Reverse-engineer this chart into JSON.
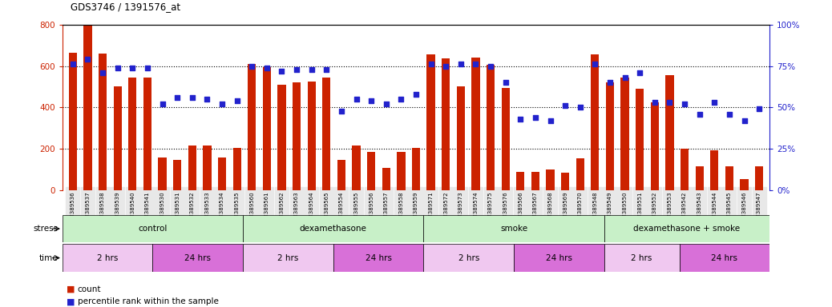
{
  "title": "GDS3746 / 1391576_at",
  "samples": [
    "GSM389536",
    "GSM389537",
    "GSM389538",
    "GSM389539",
    "GSM389540",
    "GSM389541",
    "GSM389530",
    "GSM389531",
    "GSM389532",
    "GSM389533",
    "GSM389534",
    "GSM389535",
    "GSM389560",
    "GSM389561",
    "GSM389562",
    "GSM389563",
    "GSM389564",
    "GSM389565",
    "GSM389554",
    "GSM389555",
    "GSM389556",
    "GSM389557",
    "GSM389558",
    "GSM389559",
    "GSM389571",
    "GSM389572",
    "GSM389573",
    "GSM389574",
    "GSM389575",
    "GSM389576",
    "GSM389566",
    "GSM389567",
    "GSM389568",
    "GSM389569",
    "GSM389570",
    "GSM389548",
    "GSM389549",
    "GSM389550",
    "GSM389551",
    "GSM389552",
    "GSM389553",
    "GSM389542",
    "GSM389543",
    "GSM389544",
    "GSM389545",
    "GSM389546",
    "GSM389547"
  ],
  "counts": [
    665,
    795,
    660,
    500,
    545,
    545,
    160,
    145,
    215,
    215,
    160,
    205,
    610,
    595,
    510,
    520,
    525,
    545,
    145,
    215,
    185,
    110,
    185,
    205,
    655,
    635,
    500,
    640,
    605,
    495,
    90,
    90,
    100,
    85,
    155,
    655,
    520,
    545,
    490,
    425,
    555,
    200,
    115,
    195,
    115,
    55,
    115
  ],
  "percentiles": [
    76,
    79,
    71,
    74,
    74,
    74,
    52,
    56,
    56,
    55,
    52,
    54,
    75,
    74,
    72,
    73,
    73,
    73,
    48,
    55,
    54,
    52,
    55,
    58,
    76,
    75,
    76,
    76,
    75,
    65,
    43,
    44,
    42,
    51,
    50,
    76,
    65,
    68,
    71,
    53,
    53,
    52,
    46,
    53,
    46,
    42,
    49
  ],
  "ylim_left": [
    0,
    800
  ],
  "ylim_right": [
    0,
    100
  ],
  "yticks_left": [
    0,
    200,
    400,
    600,
    800
  ],
  "yticks_right": [
    0,
    25,
    50,
    75,
    100
  ],
  "bar_color": "#cc2200",
  "dot_color": "#2222cc",
  "stress_groups": [
    {
      "label": "control",
      "start": 0,
      "end": 12,
      "color": "#c8f0c8"
    },
    {
      "label": "dexamethasone",
      "start": 12,
      "end": 24,
      "color": "#c8f0c8"
    },
    {
      "label": "smoke",
      "start": 24,
      "end": 36,
      "color": "#c8f0c8"
    },
    {
      "label": "dexamethasone + smoke",
      "start": 36,
      "end": 47,
      "color": "#c8f0c8"
    }
  ],
  "time_groups": [
    {
      "label": "2 hrs",
      "start": 0,
      "end": 6,
      "color": "#f0c8f0"
    },
    {
      "label": "24 hrs",
      "start": 6,
      "end": 12,
      "color": "#d870d8"
    },
    {
      "label": "2 hrs",
      "start": 12,
      "end": 18,
      "color": "#f0c8f0"
    },
    {
      "label": "24 hrs",
      "start": 18,
      "end": 24,
      "color": "#d870d8"
    },
    {
      "label": "2 hrs",
      "start": 24,
      "end": 30,
      "color": "#f0c8f0"
    },
    {
      "label": "24 hrs",
      "start": 30,
      "end": 36,
      "color": "#d870d8"
    },
    {
      "label": "2 hrs",
      "start": 36,
      "end": 41,
      "color": "#f0c8f0"
    },
    {
      "label": "24 hrs",
      "start": 41,
      "end": 47,
      "color": "#d870d8"
    }
  ],
  "background_color": "#ffffff",
  "left_axis_color": "#cc2200",
  "right_axis_color": "#2222cc",
  "xtick_bg": "#e8e8e8"
}
